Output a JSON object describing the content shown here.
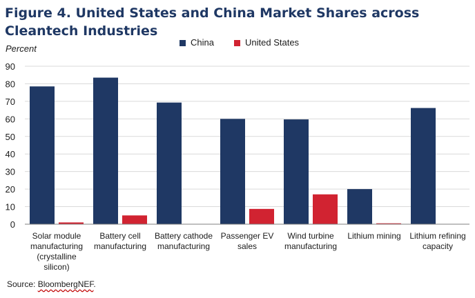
{
  "title": "Figure 4. United States and China Market Shares across Cleantech Industries",
  "units_label": "Percent",
  "source": {
    "prefix": "Source: ",
    "org": "BloombergNEF",
    "suffix": "."
  },
  "colors": {
    "china": "#1f3864",
    "us": "#d12331",
    "grid": "#d9d9d9",
    "axis": "#7f7f7f"
  },
  "chart_data": {
    "type": "bar",
    "title": "Figure 4. United States and China Market Shares across Cleantech Industries",
    "ylabel": "Percent",
    "xlabel": "",
    "ylim": [
      0,
      90
    ],
    "yticks": [
      0,
      10,
      20,
      30,
      40,
      50,
      60,
      70,
      80,
      90
    ],
    "grid": true,
    "legend_position": "top-center",
    "categories": [
      [
        "Solar module",
        "manufacturing",
        "(crystalline",
        "silicon)"
      ],
      [
        "Battery cell",
        "manufacturing"
      ],
      [
        "Battery cathode",
        "manufacturing"
      ],
      [
        "Passenger EV",
        "sales"
      ],
      [
        "Wind turbine",
        "manufacturing"
      ],
      [
        "Lithium mining"
      ],
      [
        "Lithium refining",
        "capacity"
      ]
    ],
    "series": [
      {
        "name": "China",
        "color": "#1f3864",
        "values": [
          78.5,
          83.5,
          69.3,
          60.0,
          59.7,
          20.0,
          66.2
        ]
      },
      {
        "name": "United States",
        "color": "#d12331",
        "values": [
          1.0,
          5.0,
          0,
          8.7,
          17.0,
          0.5,
          0
        ]
      }
    ]
  }
}
